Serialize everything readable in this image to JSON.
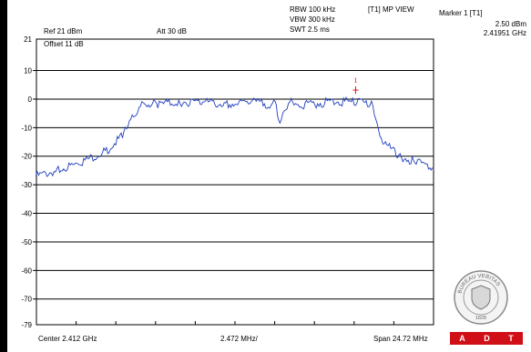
{
  "header": {
    "ref_label": "Ref 21 dBm",
    "att_label": "Att  30 dB",
    "rbw_label": "RBW 100 kHz",
    "vbw_label": "VBW 300 kHz",
    "swt_label": "SWT 2.5 ms",
    "trace_label": "[T1] MP VIEW",
    "marker_title": "Marker 1 [T1]",
    "marker_level": "2.50 dBm",
    "marker_freq": "2.41951 GHz"
  },
  "plot": {
    "offset_label": "Offset 11 dB",
    "marker_number": "1",
    "top_level_label": "21",
    "bottom_level_label": "-79"
  },
  "footer": {
    "center_label": "Center 2.412 GHz",
    "div_label": "2.472 MHz/",
    "span_label": "Span 24.72 MHz"
  },
  "logo": {
    "ring_text": "BUREAU VERITAS",
    "year": "1828",
    "letters": [
      "A",
      "D",
      "T"
    ]
  },
  "colors": {
    "trace": "#1f3fbf",
    "marker": "#e01010",
    "brand_red": "#d10f16"
  },
  "chart_data": {
    "type": "line",
    "xlabel": "",
    "ylabel": "",
    "ylim": [
      -79,
      21
    ],
    "y_unit": "dBm",
    "xlim": [
      2.39964,
      2.42436
    ],
    "x_unit": "GHz",
    "yticks": [
      10,
      0,
      -10,
      -20,
      -30,
      -40,
      -50,
      -60,
      -70
    ],
    "grid": true,
    "series": [
      {
        "x": [
          2.3996,
          2.401,
          2.4025,
          2.404,
          2.405,
          2.4062,
          2.4072,
          2.4085,
          2.41,
          2.4115,
          2.413,
          2.4145,
          2.4148,
          2.4155,
          2.4162,
          2.418,
          2.4195,
          2.4205,
          2.4212,
          2.4222,
          2.4232,
          2.4243
        ],
        "y": [
          -27,
          -25,
          -22,
          -18,
          -13,
          -1,
          -2,
          -1,
          -1,
          -2,
          -1,
          -2,
          -8,
          -1,
          -2,
          -1,
          -1,
          -2,
          -15,
          -20,
          -22,
          -24
        ]
      }
    ],
    "markers": [
      {
        "label": "1",
        "x": 2.41951,
        "y": 2.5
      }
    ]
  }
}
